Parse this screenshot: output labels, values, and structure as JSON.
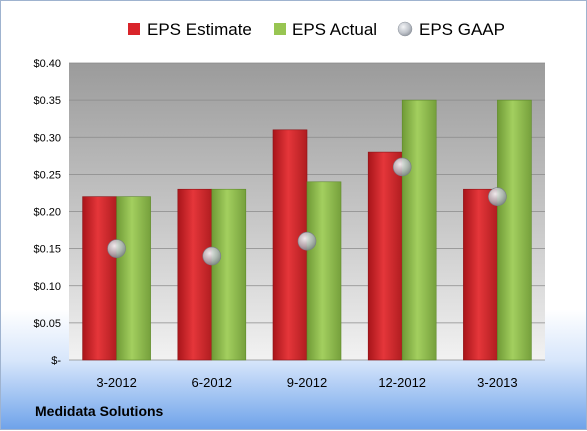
{
  "company": "Medidata Solutions",
  "chart_data": {
    "type": "bar",
    "categories": [
      "3-2012",
      "6-2012",
      "9-2012",
      "12-2012",
      "3-2013"
    ],
    "series": [
      {
        "name": "EPS Estimate",
        "type": "bar",
        "color": "#e0262b",
        "values": [
          0.22,
          0.23,
          0.31,
          0.28,
          0.23
        ]
      },
      {
        "name": "EPS Actual",
        "type": "bar",
        "color": "#98c552",
        "values": [
          0.22,
          0.23,
          0.24,
          0.35,
          0.35
        ]
      },
      {
        "name": "EPS GAAP",
        "type": "scatter",
        "color": "#b8bcc3",
        "values": [
          0.15,
          0.14,
          0.16,
          0.26,
          0.22
        ]
      }
    ],
    "yticks": [
      "$-",
      "$0.05",
      "$0.10",
      "$0.15",
      "$0.20",
      "$0.25",
      "$0.30",
      "$0.35",
      "$0.40"
    ],
    "ylim": [
      0,
      0.4
    ],
    "grid": true,
    "legend_position": "top"
  }
}
